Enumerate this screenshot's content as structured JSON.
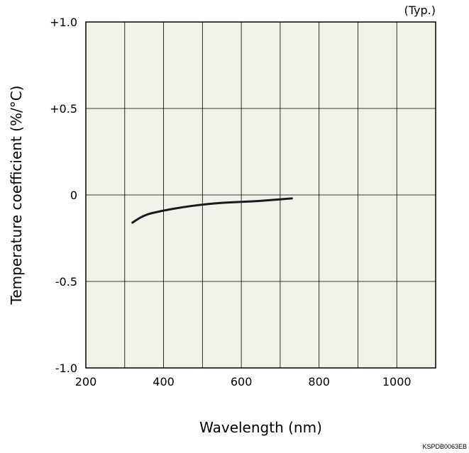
{
  "chart_data": {
    "type": "line",
    "note": "(Typ.)",
    "xlabel": "Wavelength (nm)",
    "ylabel": "Temperature coefficient (%/°C)",
    "xlim": [
      200,
      1100
    ],
    "ylim": [
      -1.0,
      1.0
    ],
    "x_ticks": [
      200,
      400,
      600,
      800,
      1000
    ],
    "x_tick_labels": [
      "200",
      "400",
      "600",
      "800",
      "1000"
    ],
    "y_ticks": [
      1.0,
      0.5,
      0,
      -0.5,
      -1.0
    ],
    "y_tick_labels": [
      "+1.0",
      "+0.5",
      "0",
      "-0.5",
      "-1.0"
    ],
    "x_grid": [
      200,
      300,
      400,
      500,
      600,
      700,
      800,
      900,
      1000,
      1100
    ],
    "y_grid": [
      -1.0,
      -0.5,
      0,
      0.5,
      1.0
    ],
    "grid": true,
    "plot_background": "#f1f0e9",
    "line_color": "#1a1a1a",
    "series": [
      {
        "x": [
          320,
          340,
          360,
          380,
          400,
          450,
          500,
          550,
          600,
          650,
          700,
          730
        ],
        "y": [
          -0.16,
          -0.13,
          -0.11,
          -0.1,
          -0.09,
          -0.07,
          -0.055,
          -0.045,
          -0.04,
          -0.035,
          -0.025,
          -0.02
        ]
      }
    ],
    "code_label": "KSPDB0063EB"
  }
}
